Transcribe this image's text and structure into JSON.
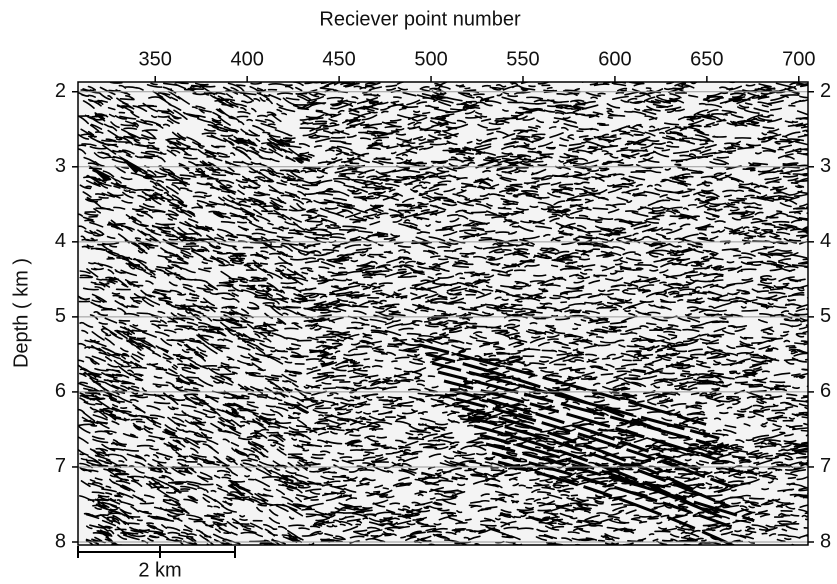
{
  "chart_data": {
    "type": "seismic-section",
    "xlabel": "Reciever point number",
    "ylabel": "Depth ( km )",
    "xlim": [
      308,
      705
    ],
    "xticks": [
      350,
      400,
      450,
      500,
      550,
      600,
      650,
      700
    ],
    "ylim": [
      1.87,
      8.04
    ],
    "yticks": [
      2,
      3,
      4,
      5,
      6,
      7,
      8
    ],
    "grid": true,
    "scale_bar": {
      "label": "2 km"
    }
  }
}
